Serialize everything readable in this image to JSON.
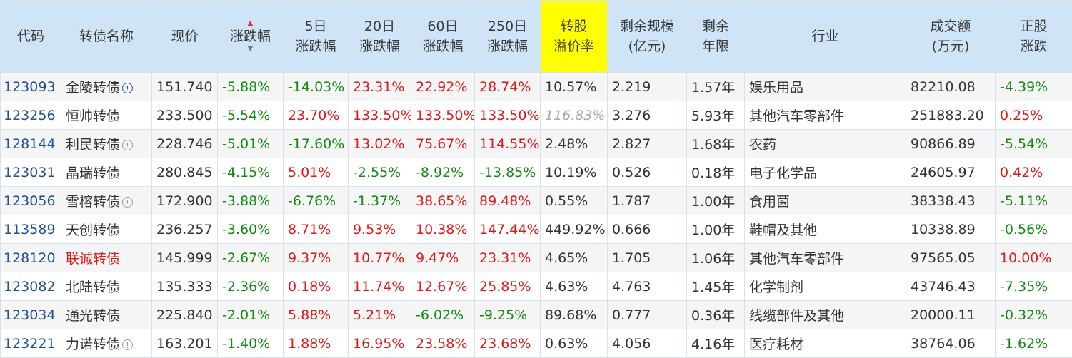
{
  "headers": [
    {
      "key": "code",
      "label": "代码"
    },
    {
      "key": "name",
      "label": "转债名称"
    },
    {
      "key": "price",
      "label": "现价"
    },
    {
      "key": "change",
      "label": "涨跌幅"
    },
    {
      "key": "chg5",
      "label": "5日\n涨跌幅"
    },
    {
      "key": "chg20",
      "label": "20日\n涨跌幅"
    },
    {
      "key": "chg60",
      "label": "60日\n涨跌幅"
    },
    {
      "key": "chg250",
      "label": "250日\n涨跌幅"
    },
    {
      "key": "premium",
      "label": "转股\n溢价率"
    },
    {
      "key": "scale",
      "label": "剩余规模\n(亿元)"
    },
    {
      "key": "years",
      "label": "剩余\n年限"
    },
    {
      "key": "industry",
      "label": "行业"
    },
    {
      "key": "turnover",
      "label": "成交额\n(万元)"
    },
    {
      "key": "stock_chg",
      "label": "正股\n涨跌"
    }
  ],
  "sort_icon": {
    "up": "▲",
    "down": "▼"
  },
  "info_glyph": "!",
  "colors": {
    "red": "#dd1a1a",
    "green": "#128a12",
    "header_bg": "#cfe4f6",
    "highlight": "#ffff00",
    "code": "#1f4e9b"
  },
  "rows": [
    {
      "code": "123093",
      "name": "金陵转债",
      "info": "blue",
      "name_red": false,
      "price": "151.740",
      "change": "-5.88%",
      "chg5": "-14.03%",
      "chg20": "23.31%",
      "chg60": "22.92%",
      "chg250": "28.74%",
      "premium": "10.57%",
      "premium_grey": false,
      "scale": "2.219",
      "years": "1.57年",
      "industry": "娱乐用品",
      "turnover": "82210.08",
      "stock_chg": "-4.39%"
    },
    {
      "code": "123256",
      "name": "恒帅转债",
      "info": "",
      "name_red": false,
      "price": "233.500",
      "change": "-5.54%",
      "chg5": "23.70%",
      "chg20": "133.50%",
      "chg60": "133.50%",
      "chg250": "133.50%",
      "premium": "116.83%",
      "premium_grey": true,
      "scale": "3.276",
      "years": "5.93年",
      "industry": "其他汽车零部件",
      "turnover": "251883.20",
      "stock_chg": "0.25%"
    },
    {
      "code": "128144",
      "name": "利民转债",
      "info": "gray",
      "name_red": false,
      "price": "228.746",
      "change": "-5.01%",
      "chg5": "-17.60%",
      "chg20": "13.02%",
      "chg60": "75.67%",
      "chg250": "114.55%",
      "premium": "2.48%",
      "premium_grey": false,
      "scale": "2.827",
      "years": "1.68年",
      "industry": "农药",
      "turnover": "90866.89",
      "stock_chg": "-5.54%"
    },
    {
      "code": "123031",
      "name": "晶瑞转债",
      "info": "",
      "name_red": false,
      "price": "280.845",
      "change": "-4.15%",
      "chg5": "5.01%",
      "chg20": "-2.55%",
      "chg60": "-8.92%",
      "chg250": "-13.85%",
      "premium": "10.19%",
      "premium_grey": false,
      "scale": "0.526",
      "years": "0.18年",
      "industry": "电子化学品",
      "turnover": "24605.97",
      "stock_chg": "0.42%"
    },
    {
      "code": "123056",
      "name": "雪榕转债",
      "info": "gray",
      "name_red": false,
      "price": "172.900",
      "change": "-3.88%",
      "chg5": "-6.76%",
      "chg20": "-1.37%",
      "chg60": "38.65%",
      "chg250": "89.48%",
      "premium": "0.55%",
      "premium_grey": false,
      "scale": "1.787",
      "years": "1.00年",
      "industry": "食用菌",
      "turnover": "38338.43",
      "stock_chg": "-5.11%"
    },
    {
      "code": "113589",
      "name": "天创转债",
      "info": "",
      "name_red": false,
      "price": "236.257",
      "change": "-3.60%",
      "chg5": "8.71%",
      "chg20": "9.53%",
      "chg60": "10.38%",
      "chg250": "147.44%",
      "premium": "449.92%",
      "premium_grey": false,
      "scale": "0.666",
      "years": "1.00年",
      "industry": "鞋帽及其他",
      "turnover": "10338.89",
      "stock_chg": "-0.56%"
    },
    {
      "code": "128120",
      "name": "联诚转债",
      "info": "",
      "name_red": true,
      "price": "145.999",
      "change": "-2.67%",
      "chg5": "9.37%",
      "chg20": "10.77%",
      "chg60": "9.47%",
      "chg250": "23.31%",
      "premium": "4.65%",
      "premium_grey": false,
      "scale": "1.705",
      "years": "1.06年",
      "industry": "其他汽车零部件",
      "turnover": "97565.05",
      "stock_chg": "10.00%"
    },
    {
      "code": "123082",
      "name": "北陆转债",
      "info": "",
      "name_red": false,
      "price": "135.333",
      "change": "-2.36%",
      "chg5": "0.18%",
      "chg20": "11.74%",
      "chg60": "12.67%",
      "chg250": "25.85%",
      "premium": "4.63%",
      "premium_grey": false,
      "scale": "4.763",
      "years": "1.45年",
      "industry": "化学制剂",
      "turnover": "43746.43",
      "stock_chg": "-7.35%"
    },
    {
      "code": "123034",
      "name": "通光转债",
      "info": "",
      "name_red": false,
      "price": "225.840",
      "change": "-2.01%",
      "chg5": "5.88%",
      "chg20": "5.21%",
      "chg60": "-6.02%",
      "chg250": "-9.25%",
      "premium": "89.68%",
      "premium_grey": false,
      "scale": "0.777",
      "years": "0.36年",
      "industry": "线缆部件及其他",
      "turnover": "20000.11",
      "stock_chg": "-0.32%"
    },
    {
      "code": "123221",
      "name": "力诺转债",
      "info": "gray",
      "name_red": false,
      "price": "163.201",
      "change": "-1.40%",
      "chg5": "1.88%",
      "chg20": "16.95%",
      "chg60": "23.58%",
      "chg250": "23.68%",
      "premium": "0.63%",
      "premium_grey": false,
      "scale": "4.056",
      "years": "4.16年",
      "industry": "医疗耗材",
      "turnover": "38764.06",
      "stock_chg": "-1.62%"
    }
  ]
}
